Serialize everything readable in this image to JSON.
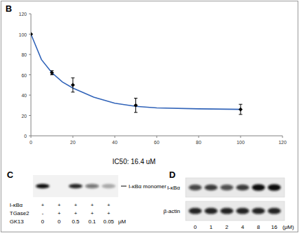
{
  "chart_data": {
    "type": "scatter",
    "panel_label": "B",
    "xlim": [
      0,
      120
    ],
    "ylim": [
      0,
      120
    ],
    "xticks": [
      0,
      20,
      40,
      60,
      80,
      100,
      120
    ],
    "yticks": [
      0,
      20,
      40,
      60,
      80,
      100,
      120
    ],
    "annotation": "IC50: 16.4 uM",
    "series": [
      {
        "type": "scatter",
        "marker": "diamond",
        "color": "#000000",
        "x": [
          0,
          10,
          20,
          50,
          100
        ],
        "values": [
          100,
          62,
          50,
          30,
          26
        ],
        "errors": [
          0,
          2,
          7,
          7,
          5
        ]
      },
      {
        "type": "line",
        "line_style": "solid",
        "color": "#2f62b8",
        "x": [
          0,
          5,
          10,
          15,
          20,
          30,
          40,
          50,
          60,
          80,
          100
        ],
        "values": [
          100,
          75,
          62,
          53,
          47,
          38,
          32,
          29,
          27.5,
          26.5,
          26
        ]
      }
    ]
  },
  "panel_c": {
    "label": "C",
    "band_label": "I-κBα monomer",
    "band_intensity": [
      1,
      0,
      0.9,
      0.55,
      0.3
    ],
    "rows": [
      {
        "name": "I-κBα",
        "cells": [
          "+",
          "+",
          "+",
          "+",
          "+"
        ]
      },
      {
        "name": "TGase2",
        "cells": [
          "-",
          "+",
          "+",
          "+",
          "+"
        ]
      },
      {
        "name": "GK13",
        "cells": [
          "0",
          "0",
          "0.5",
          "0.1",
          "0.05"
        ]
      }
    ],
    "unit": "μM"
  },
  "panel_d": {
    "label": "D",
    "lanes": [
      "0",
      "1",
      "2",
      "4",
      "8",
      "16"
    ],
    "unit": "(μM)",
    "rows": [
      {
        "name": "I-κBα",
        "band_intensity": [
          0.75,
          0.8,
          0.7,
          0.8,
          1,
          1
        ]
      },
      {
        "name": "β-actin",
        "band_intensity": [
          0.9,
          0.9,
          0.9,
          0.9,
          0.9,
          0.9
        ]
      }
    ]
  }
}
